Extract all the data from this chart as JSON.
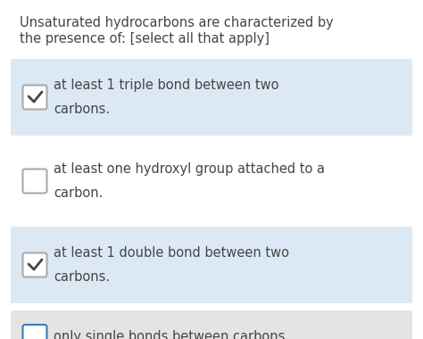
{
  "title_line1": "Unsaturated hydrocarbons are characterized by",
  "title_line2": "the presence of: [select all that apply]",
  "title_color": "#454545",
  "title_fontsize": 10.5,
  "bg_color": "#ffffff",
  "options": [
    {
      "text_line1": "at least 1 triple bond between two",
      "text_line2": "carbons.",
      "checked": true,
      "bg": "#dce9f5",
      "border_color": "#aaaaaa",
      "check_color": "#454545"
    },
    {
      "text_line1": "at least one hydroxyl group attached to a",
      "text_line2": "carbon.",
      "checked": false,
      "bg": "#ffffff",
      "border_color": "#aaaaaa",
      "check_color": "#454545"
    },
    {
      "text_line1": "at least 1 double bond between two",
      "text_line2": "carbons.",
      "checked": true,
      "bg": "#dce9f5",
      "border_color": "#aaaaaa",
      "check_color": "#454545"
    },
    {
      "text_line1": "only single bonds between carbons.",
      "text_line2": null,
      "checked": false,
      "bg": "#e4e4e4",
      "border_color": "#3a7abf",
      "check_color": "#454545"
    }
  ],
  "option_fontsize": 10.5,
  "figsize": [
    4.74,
    3.8
  ],
  "dpi": 100
}
